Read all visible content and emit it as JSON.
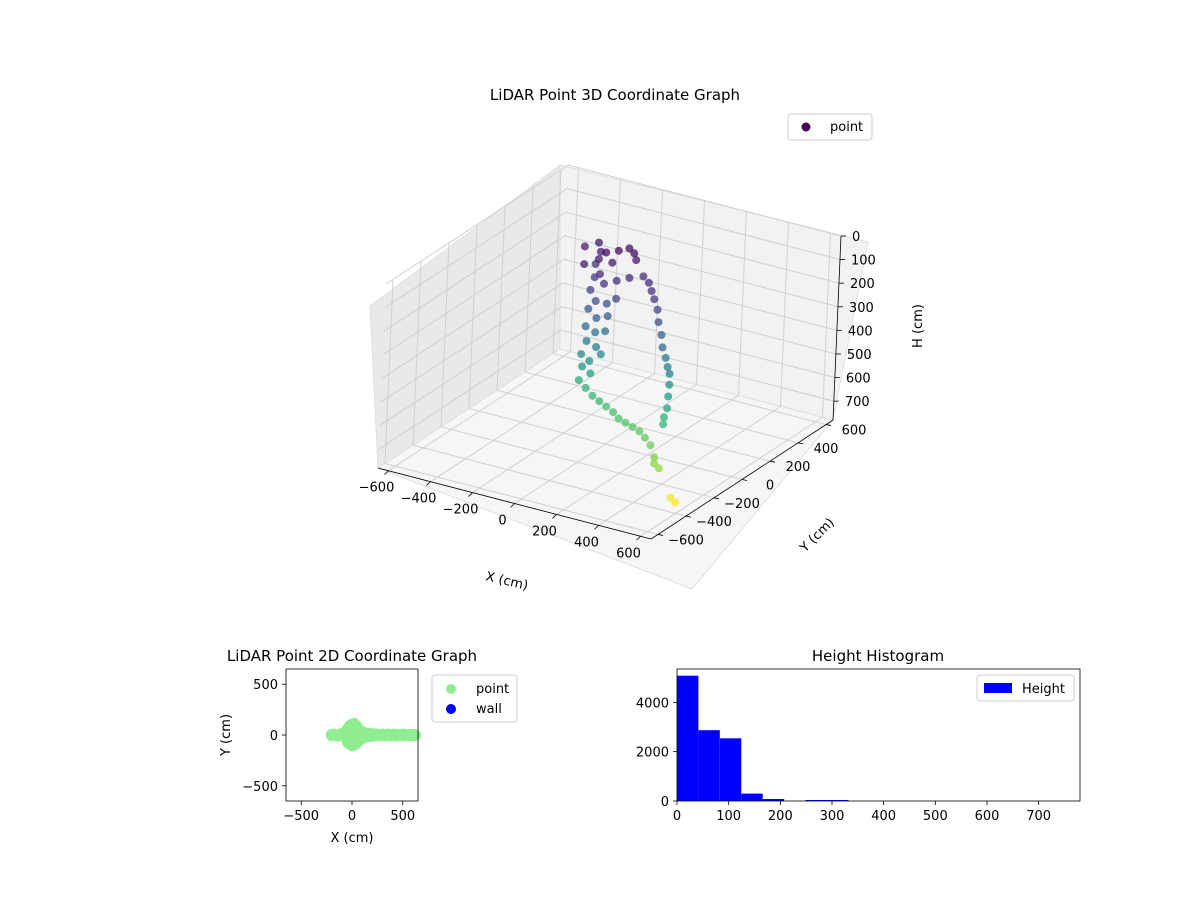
{
  "chart_data": [
    {
      "type": "scatter",
      "projection": "3d",
      "title": "LiDAR Point 3D Coordinate Graph",
      "xlabel": "X (cm)",
      "ylabel": "Y (cm)",
      "zlabel": "H (cm)",
      "xlim": [
        -650,
        650
      ],
      "ylim": [
        -650,
        650
      ],
      "zlim": [
        0,
        780
      ],
      "z_inverted": true,
      "xticks": [
        -600,
        -400,
        -200,
        0,
        200,
        400,
        600
      ],
      "yticks": [
        -600,
        -400,
        -200,
        0,
        200,
        400,
        600
      ],
      "zticks": [
        0,
        100,
        200,
        300,
        400,
        500,
        600,
        700
      ],
      "grid": true,
      "legend": "top-right",
      "colormap": "viridis (by height)",
      "series": [
        {
          "name": "point",
          "color": "#440154",
          "points": [
            [
              -100,
              100,
              30
            ],
            [
              -60,
              130,
              25
            ],
            [
              -30,
              160,
              20
            ],
            [
              0,
              150,
              30
            ],
            [
              30,
              120,
              40
            ],
            [
              -50,
              70,
              50
            ],
            [
              -150,
              20,
              60
            ],
            [
              -120,
              80,
              55
            ],
            [
              -80,
              30,
              90
            ],
            [
              -40,
              0,
              110
            ],
            [
              0,
              30,
              100
            ],
            [
              40,
              60,
              90
            ],
            [
              -90,
              -20,
              140
            ],
            [
              -50,
              -40,
              170
            ],
            [
              -10,
              -20,
              180
            ],
            [
              20,
              0,
              160
            ],
            [
              -70,
              -60,
              200
            ],
            [
              -30,
              -60,
              230
            ],
            [
              10,
              -40,
              220
            ],
            [
              -60,
              -90,
              260
            ],
            [
              -20,
              -80,
              280
            ],
            [
              20,
              -70,
              270
            ],
            [
              -40,
              -110,
              310
            ],
            [
              0,
              -100,
              330
            ],
            [
              -50,
              -130,
              360
            ],
            [
              -10,
              -130,
              380
            ],
            [
              30,
              -110,
              350
            ],
            [
              -30,
              -150,
              400
            ],
            [
              10,
              -150,
              420
            ],
            [
              -240,
              160,
              60
            ],
            [
              -200,
              200,
              50
            ],
            [
              -170,
              170,
              70
            ],
            [
              -160,
              120,
              100
            ],
            [
              -130,
              70,
              130
            ],
            [
              80,
              100,
              90
            ],
            [
              120,
              80,
              100
            ],
            [
              160,
              40,
              110
            ],
            [
              200,
              0,
              120
            ],
            [
              230,
              -20,
              150
            ],
            [
              250,
              -40,
              190
            ],
            [
              280,
              -60,
              230
            ],
            [
              300,
              -80,
              270
            ],
            [
              330,
              -100,
              300
            ],
            [
              360,
              -130,
              320
            ],
            [
              390,
              -160,
              330
            ],
            [
              410,
              -190,
              360
            ],
            [
              420,
              -210,
              400
            ],
            [
              430,
              -230,
              440
            ],
            [
              430,
              -250,
              470
            ],
            [
              440,
              -270,
              490
            ],
            [
              -30,
              -170,
              450
            ],
            [
              10,
              -180,
              470
            ],
            [
              50,
              -190,
              490
            ],
            [
              90,
              -200,
              500
            ],
            [
              130,
              -210,
              510
            ],
            [
              170,
              -220,
              520
            ],
            [
              210,
              -240,
              530
            ],
            [
              250,
              -250,
              535
            ],
            [
              290,
              -260,
              540
            ],
            [
              330,
              -270,
              545
            ],
            [
              370,
              -290,
              555
            ],
            [
              410,
              -310,
              570
            ],
            [
              450,
              -340,
              600
            ],
            [
              470,
              -370,
              610
            ],
            [
              500,
              -380,
              620
            ],
            [
              560,
              -380,
              730
            ],
            [
              590,
              -390,
              740
            ]
          ]
        }
      ]
    },
    {
      "type": "scatter",
      "title": "LiDAR Point 2D Coordinate Graph",
      "xlabel": "X (cm)",
      "ylabel": "Y (cm)",
      "xlim": [
        -650,
        650
      ],
      "ylim": [
        -650,
        650
      ],
      "xticks": [
        -500,
        0,
        500
      ],
      "yticks": [
        -500,
        0,
        500
      ],
      "legend": "outside-right",
      "series": [
        {
          "name": "point",
          "color": "#90ee90",
          "points": [
            [
              -200,
              0
            ],
            [
              -180,
              5
            ],
            [
              -150,
              -5
            ],
            [
              -120,
              0
            ],
            [
              -100,
              10
            ],
            [
              -80,
              -10
            ],
            [
              -60,
              30
            ],
            [
              -50,
              -40
            ],
            [
              -40,
              60
            ],
            [
              -40,
              -70
            ],
            [
              -20,
              90
            ],
            [
              -20,
              -90
            ],
            [
              0,
              100
            ],
            [
              0,
              -100
            ],
            [
              20,
              110
            ],
            [
              20,
              -95
            ],
            [
              40,
              90
            ],
            [
              40,
              -80
            ],
            [
              60,
              60
            ],
            [
              60,
              -60
            ],
            [
              80,
              40
            ],
            [
              80,
              -40
            ],
            [
              100,
              30
            ],
            [
              100,
              -30
            ],
            [
              0,
              40
            ],
            [
              0,
              -40
            ],
            [
              -20,
              20
            ],
            [
              20,
              -20
            ],
            [
              40,
              0
            ],
            [
              -40,
              0
            ],
            [
              120,
              20
            ],
            [
              120,
              -20
            ],
            [
              140,
              0
            ],
            [
              160,
              10
            ],
            [
              160,
              -10
            ],
            [
              180,
              0
            ],
            [
              200,
              10
            ],
            [
              200,
              -10
            ],
            [
              220,
              0
            ],
            [
              240,
              5
            ],
            [
              260,
              -5
            ],
            [
              280,
              0
            ],
            [
              300,
              5
            ],
            [
              320,
              -5
            ],
            [
              340,
              0
            ],
            [
              360,
              5
            ],
            [
              380,
              -5
            ],
            [
              400,
              0
            ],
            [
              420,
              5
            ],
            [
              440,
              -5
            ],
            [
              460,
              0
            ],
            [
              480,
              0
            ],
            [
              500,
              5
            ],
            [
              520,
              -5
            ],
            [
              540,
              0
            ],
            [
              560,
              0
            ],
            [
              580,
              0
            ],
            [
              600,
              0
            ],
            [
              620,
              0
            ]
          ]
        },
        {
          "name": "wall",
          "color": "#0000ff",
          "points": []
        }
      ]
    },
    {
      "type": "bar",
      "subtype": "histogram",
      "title": "Height Histogram",
      "xlabel": "",
      "ylabel": "",
      "xlim": [
        0,
        780
      ],
      "ylim": [
        0,
        5350
      ],
      "xticks": [
        0,
        100,
        200,
        300,
        400,
        500,
        600,
        700
      ],
      "yticks": [
        0,
        2000,
        4000
      ],
      "bin_width": 41.5,
      "bins": [
        {
          "start": 0,
          "value": 5080
        },
        {
          "start": 41.5,
          "value": 2870
        },
        {
          "start": 83,
          "value": 2540
        },
        {
          "start": 124.5,
          "value": 300
        },
        {
          "start": 166,
          "value": 80
        },
        {
          "start": 207.5,
          "value": 0
        },
        {
          "start": 249,
          "value": 40
        },
        {
          "start": 290.5,
          "value": 40
        }
      ],
      "legend": "top-right",
      "series": [
        {
          "name": "Height",
          "color": "#0000ff"
        }
      ]
    }
  ]
}
